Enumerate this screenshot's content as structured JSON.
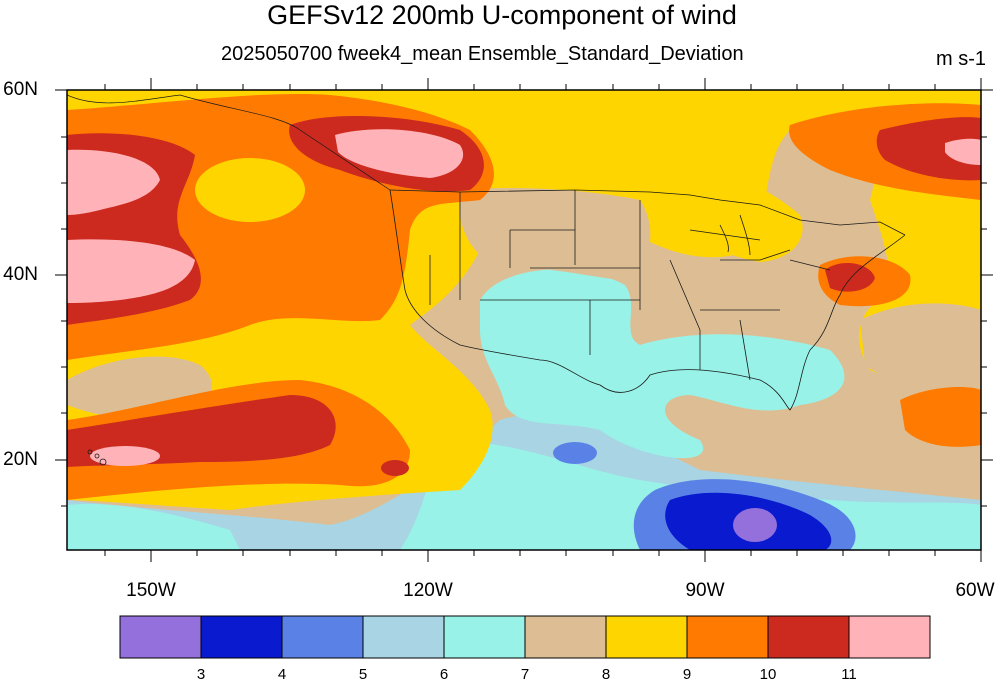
{
  "title": "GEFSv12 200mb U-component of wind",
  "subtitle": "2025050700 fweek4_mean Ensemble_Standard_Deviation",
  "units": "m s-1",
  "map": {
    "lon_range": [
      -160,
      -60
    ],
    "lat_range": [
      10,
      60
    ],
    "lat_labels": [
      {
        "lat": 60,
        "text": "60N"
      },
      {
        "lat": 40,
        "text": "40N"
      },
      {
        "lat": 20,
        "text": "20N"
      }
    ],
    "lon_labels": [
      {
        "lon": -150,
        "text": "150W"
      },
      {
        "lon": -120,
        "text": "120W"
      },
      {
        "lon": -90,
        "text": "90W"
      },
      {
        "lon": -60,
        "text": "60W"
      }
    ]
  },
  "colorbar": {
    "colors": [
      "#9370DB",
      "#0A1ACF",
      "#5A82E6",
      "#A9D4E3",
      "#98F2E8",
      "#DDBE94",
      "#FFD500",
      "#FF7A00",
      "#CC2A1E",
      "#FFB3B8"
    ],
    "labels": [
      "3",
      "4",
      "5",
      "6",
      "7",
      "8",
      "9",
      "10",
      "11"
    ]
  }
}
